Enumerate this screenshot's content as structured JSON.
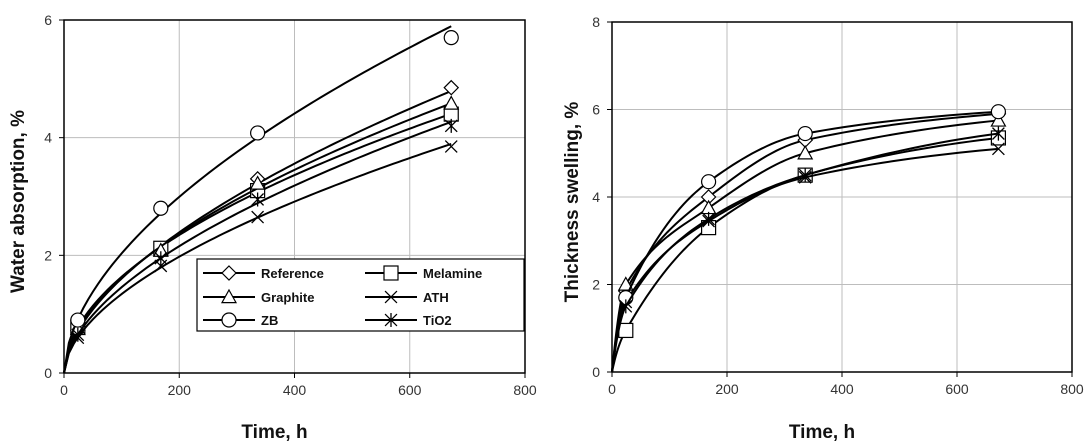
{
  "chart_data": [
    {
      "type": "line",
      "title": "",
      "xlabel": "Time, h",
      "ylabel": "Water absorption, %",
      "xlim": [
        0,
        800
      ],
      "ylim": [
        0,
        6
      ],
      "xticks": [
        "0",
        "200",
        "400",
        "600",
        "800"
      ],
      "yticks": [
        "0",
        "2",
        "4",
        "6"
      ],
      "grid": true,
      "legend": "bottom-right",
      "x": [
        24,
        168,
        336,
        672
      ],
      "series": [
        {
          "name": "Reference",
          "marker": "diamond",
          "values": [
            0.72,
            2.05,
            3.3,
            4.85
          ]
        },
        {
          "name": "Melamine",
          "marker": "square",
          "values": [
            0.78,
            2.12,
            3.1,
            4.4
          ]
        },
        {
          "name": "Graphite",
          "marker": "triangle",
          "values": [
            0.75,
            2.08,
            3.22,
            4.58
          ]
        },
        {
          "name": "ATH",
          "marker": "x",
          "values": [
            0.6,
            1.82,
            2.65,
            3.85
          ]
        },
        {
          "name": "ZB",
          "marker": "circle",
          "values": [
            0.9,
            2.8,
            4.08,
            5.7
          ]
        },
        {
          "name": "TiO2",
          "marker": "star",
          "values": [
            0.65,
            1.95,
            2.95,
            4.2
          ]
        }
      ]
    },
    {
      "type": "line",
      "title": "",
      "xlabel": "Time, h",
      "ylabel": "Thickness  swelling, %",
      "xlim": [
        0,
        800
      ],
      "ylim": [
        0,
        8
      ],
      "xticks": [
        "0",
        "200",
        "400",
        "600",
        "800"
      ],
      "yticks": [
        "0",
        "2",
        "4",
        "6",
        "8"
      ],
      "grid": true,
      "x": [
        24,
        168,
        336,
        672
      ],
      "series": [
        {
          "name": "Reference",
          "marker": "diamond",
          "values": [
            1.85,
            4.0,
            5.3,
            5.9
          ]
        },
        {
          "name": "Melamine",
          "marker": "square",
          "values": [
            0.95,
            3.3,
            4.5,
            5.35
          ]
        },
        {
          "name": "Graphite",
          "marker": "triangle",
          "values": [
            2.0,
            3.75,
            5.0,
            5.75
          ]
        },
        {
          "name": "ATH",
          "marker": "x",
          "values": [
            1.6,
            3.45,
            4.45,
            5.1
          ]
        },
        {
          "name": "ZB",
          "marker": "circle",
          "values": [
            1.7,
            4.35,
            5.45,
            5.95
          ]
        },
        {
          "name": "TiO2",
          "marker": "star",
          "values": [
            1.5,
            3.5,
            4.5,
            5.45
          ]
        }
      ]
    }
  ]
}
